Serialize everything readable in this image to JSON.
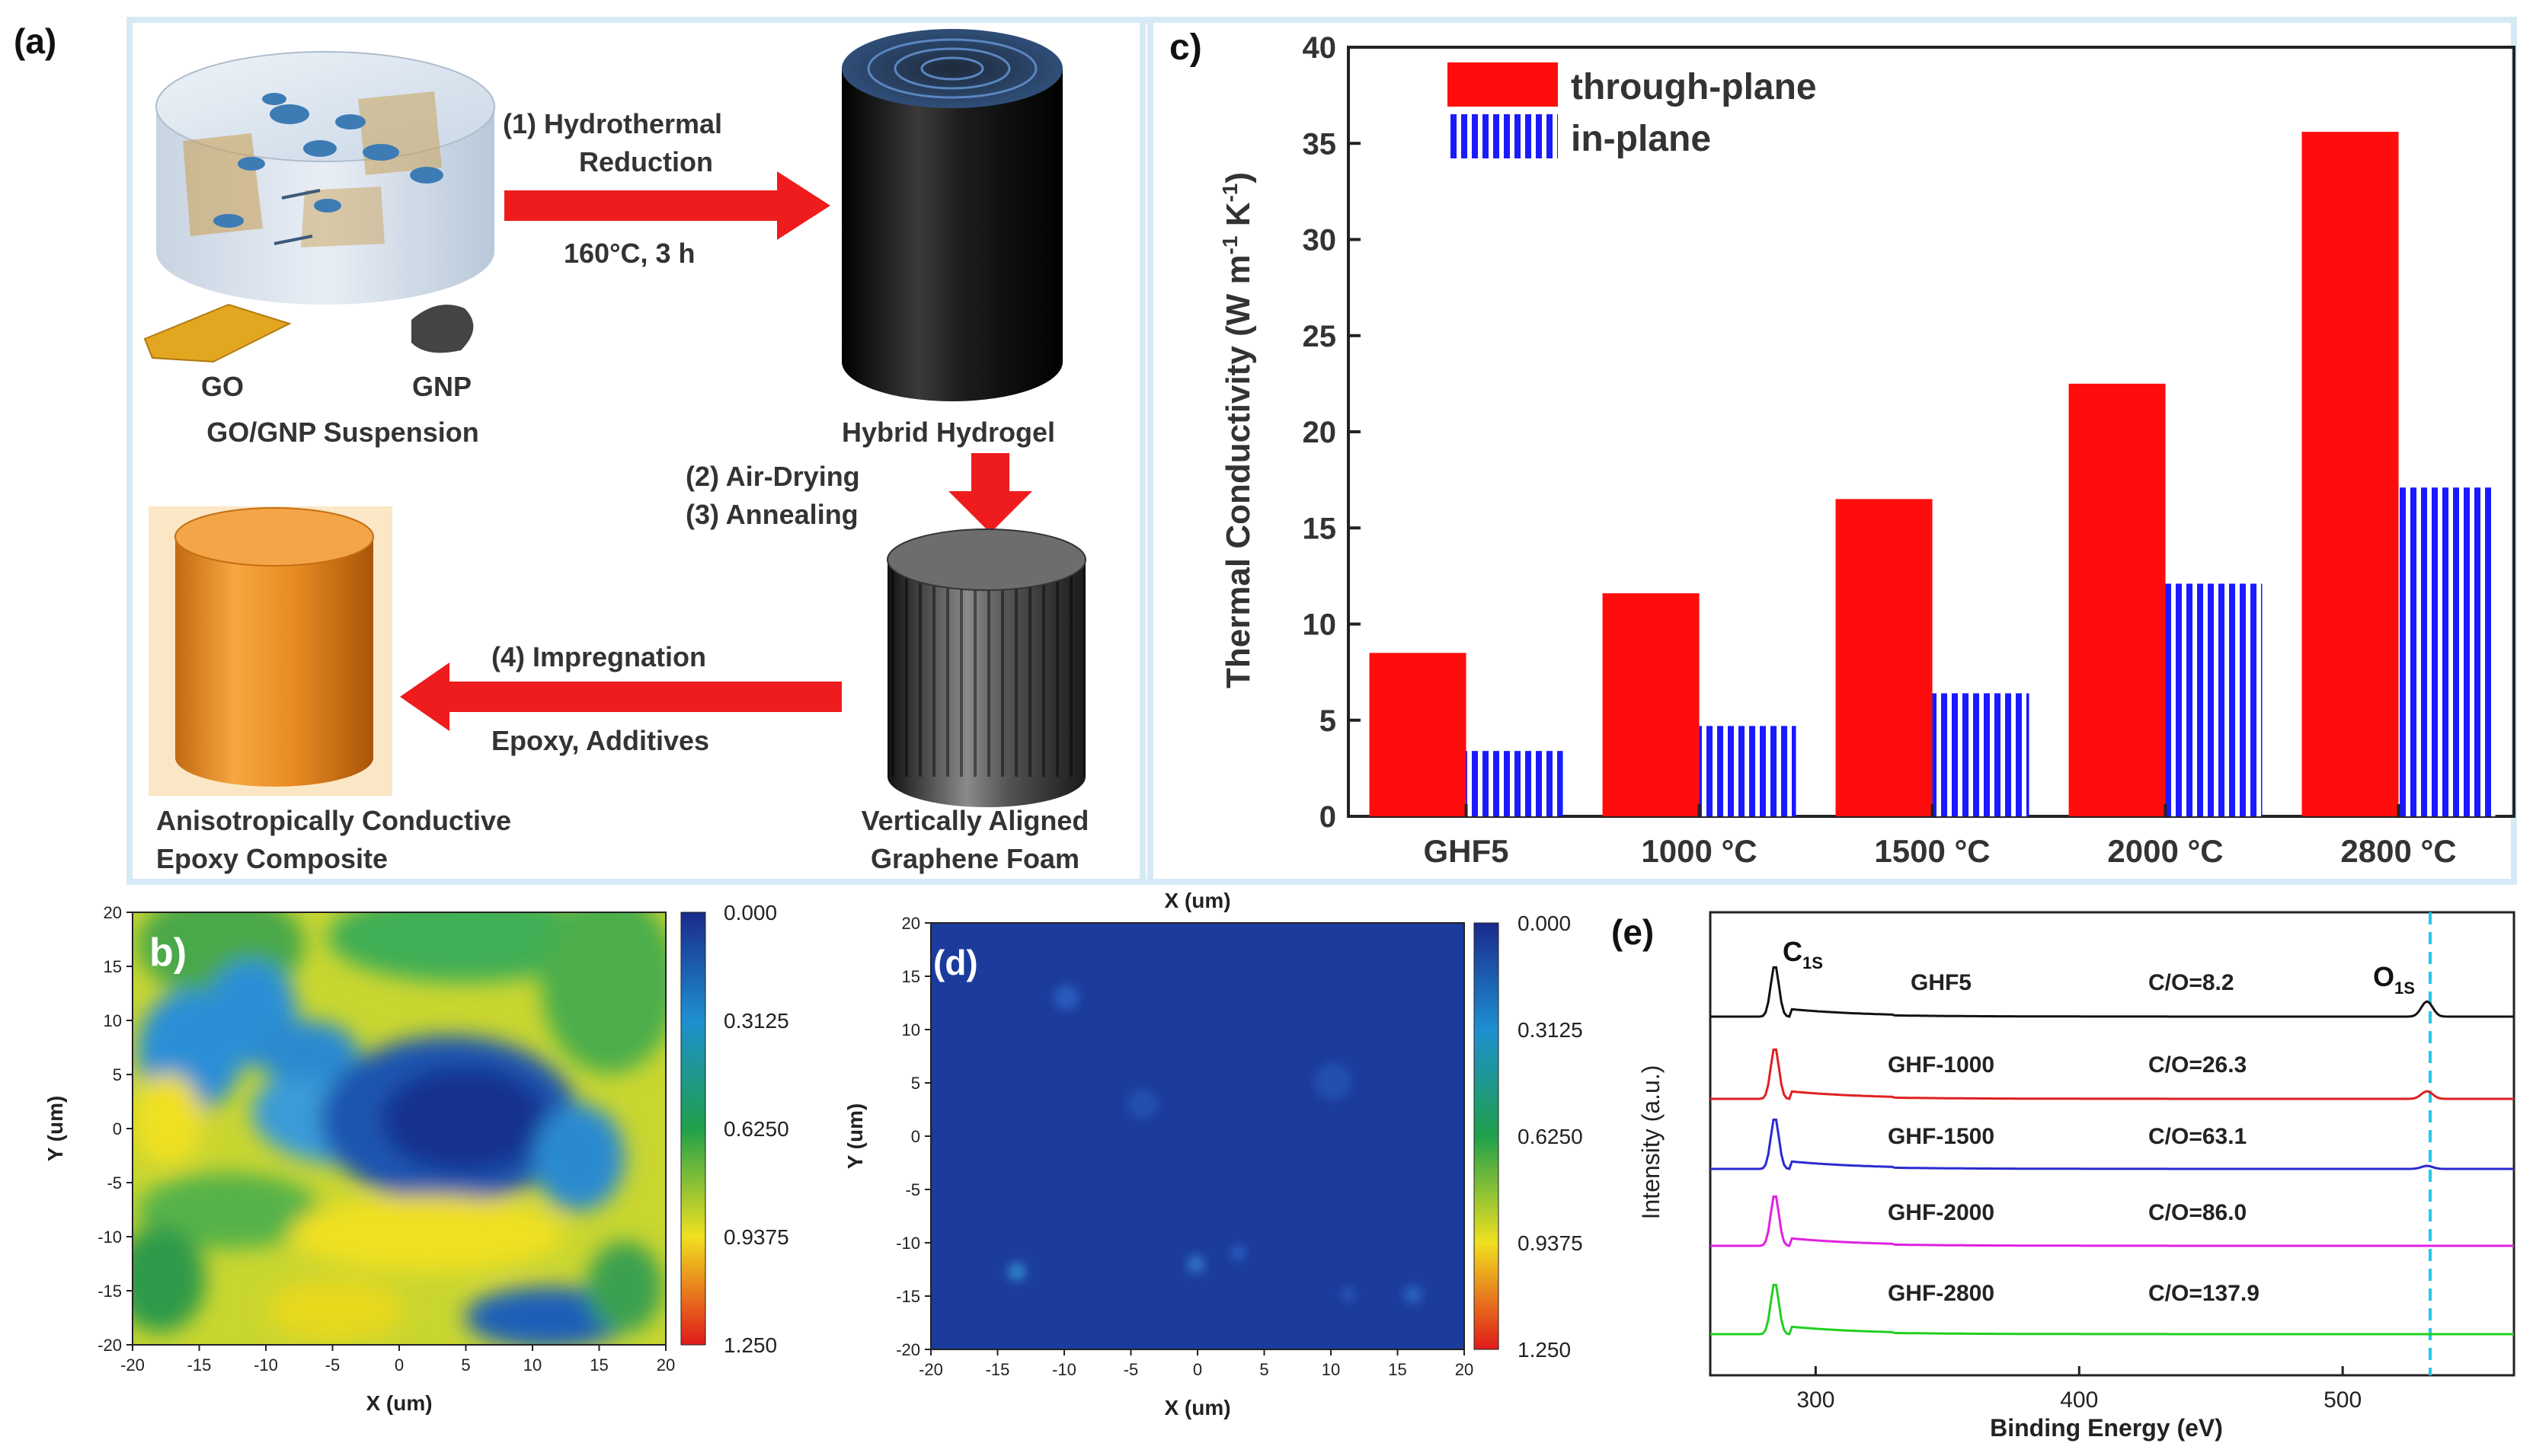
{
  "panel_a": {
    "label": "(a)",
    "step1_line1": "(1)  Hydrothermal",
    "step1_line2": "Reduction",
    "step1_cond": "160°C, 3 h",
    "go_label": "GO",
    "gnp_label": "GNP",
    "suspension_label": "GO/GNP Suspension",
    "hydrogel_label": "Hybrid Hydrogel",
    "step2": "(2) Air-Drying",
    "step3": "(3) Annealing",
    "foam_line1": "Vertically Aligned",
    "foam_line2": "Graphene Foam",
    "step4": "(4) Impregnation",
    "step4_cond": "Epoxy, Additives",
    "composite_line1": "Anisotropically Conductive",
    "composite_line2": "Epoxy Composite",
    "colors": {
      "arrow": "#ee1c1c",
      "frame": "#d6eaf5",
      "orange": "#f39a2e"
    }
  },
  "panel_b": {
    "label": "b)",
    "xlabel": "X (um)",
    "ylabel": "Y (um)",
    "ticks": [
      "-20",
      "-15",
      "-10",
      "-5",
      "0",
      "5",
      "10",
      "15",
      "20"
    ],
    "y_ticks": [
      "20",
      "15",
      "10",
      "5",
      "0",
      "-5",
      "-10",
      "-15",
      "-20"
    ],
    "colorbar": [
      "0.000",
      "0.3125",
      "0.6250",
      "0.9375",
      "1.250"
    ]
  },
  "panel_d": {
    "label": "(d)",
    "xlabel_top": "X (um)",
    "xlabel": "X (um)",
    "ylabel": "Y (um)",
    "ticks": [
      "-20",
      "-15",
      "-10",
      "-5",
      "0",
      "5",
      "10",
      "15",
      "20"
    ],
    "y_ticks": [
      "20",
      "15",
      "10",
      "5",
      "0",
      "-5",
      "-10",
      "-15",
      "-20"
    ],
    "colorbar": [
      "0.000",
      "0.3125",
      "0.6250",
      "0.9375",
      "1.250"
    ]
  },
  "panel_c": {
    "label": "c)",
    "legend": [
      "through-plane",
      "in-plane"
    ],
    "y_ticks": [
      "0",
      "5",
      "10",
      "15",
      "20",
      "25",
      "30",
      "35",
      "40"
    ]
  },
  "panel_e": {
    "label": "(e)",
    "c1s": "C",
    "c1s_sub": "1S",
    "o1s": "O",
    "o1s_sub": "1S",
    "xlabel": "Binding Energy (eV)",
    "ylabel": "Intensity (a.u.)",
    "x_ticks": [
      "300",
      "400",
      "500"
    ],
    "spectra": [
      {
        "name": "GHF5",
        "ratio": "C/O=8.2",
        "color": "#111111"
      },
      {
        "name": "GHF-1000",
        "ratio": "C/O=26.3",
        "color": "#e02020"
      },
      {
        "name": "GHF-1500",
        "ratio": "C/O=63.1",
        "color": "#2a2ad0"
      },
      {
        "name": "GHF-2000",
        "ratio": "C/O=86.0",
        "color": "#e020e0"
      },
      {
        "name": "GHF-2800",
        "ratio": "C/O=137.9",
        "color": "#20d020"
      }
    ]
  },
  "chart_data": {
    "type": "bar",
    "categories": [
      "GHF5",
      "1000 °C",
      "1500 °C",
      "2000 °C",
      "2800 °C"
    ],
    "series": [
      {
        "name": "through-plane",
        "values": [
          8.5,
          11.6,
          16.5,
          22.5,
          35.6
        ],
        "color": "#ff0d0d"
      },
      {
        "name": "in-plane",
        "values": [
          3.4,
          4.7,
          6.4,
          12.1,
          17.1
        ],
        "color": "#1a1aff"
      }
    ],
    "xlabel": "",
    "ylabel": "Thermal Conductivity (W m⁻¹ K⁻¹)",
    "ylim": [
      0,
      40
    ],
    "legend": "top-left"
  }
}
